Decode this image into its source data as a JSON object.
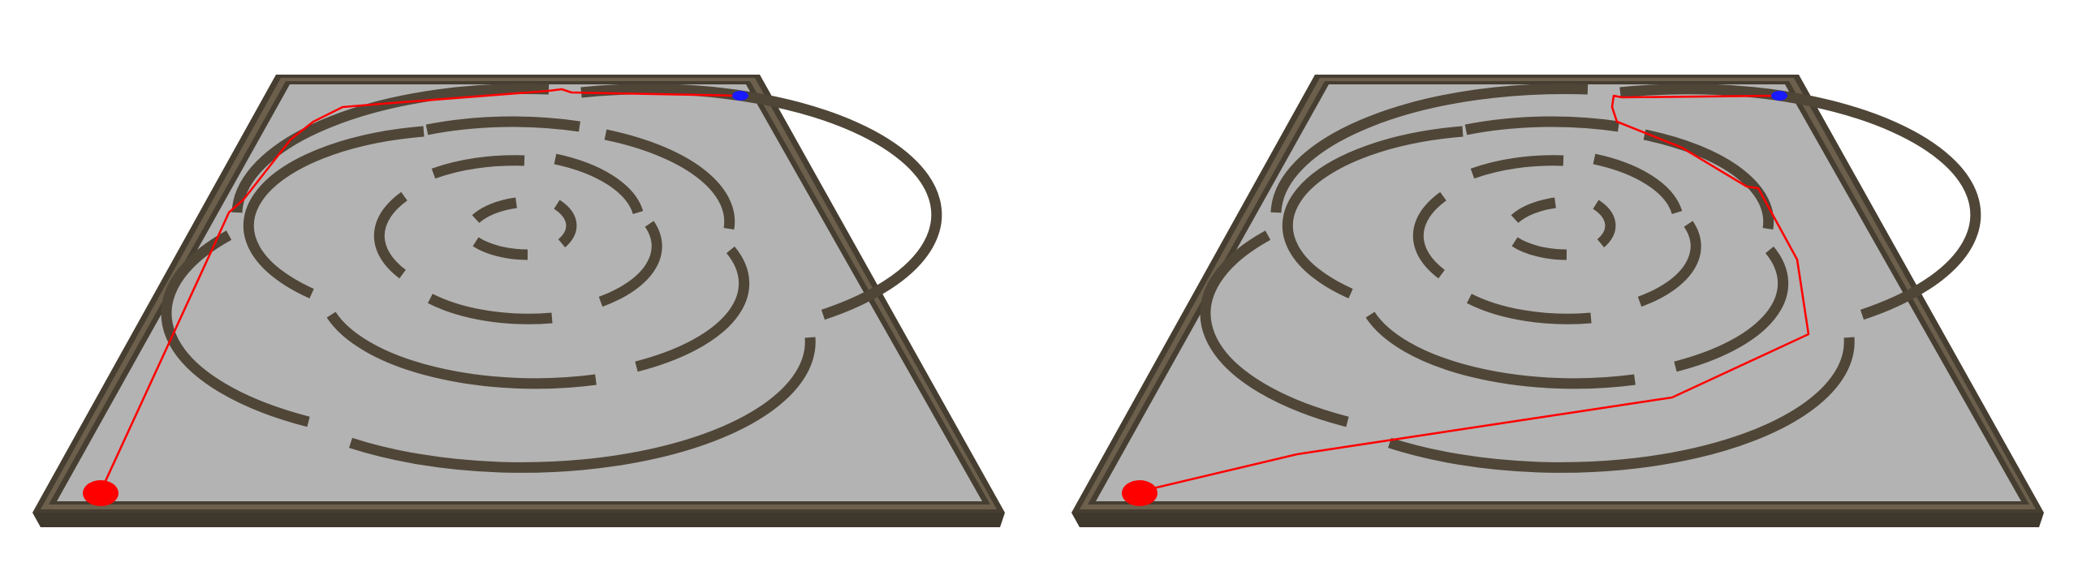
{
  "scene": {
    "colors": {
      "background": "#ffffff",
      "floor": "#b3b3b3",
      "border_wall": "#463e31",
      "border_wall_top": "#6c604d",
      "inner_wall": "#4f4638",
      "path": "#ff0000",
      "start_marker": "#ff0000",
      "goal_marker": "#1a1aff"
    },
    "panels": [
      {
        "id": "left",
        "path_variant": "outer-left-route"
      },
      {
        "id": "right",
        "path_variant": "outer-right-route"
      }
    ]
  }
}
